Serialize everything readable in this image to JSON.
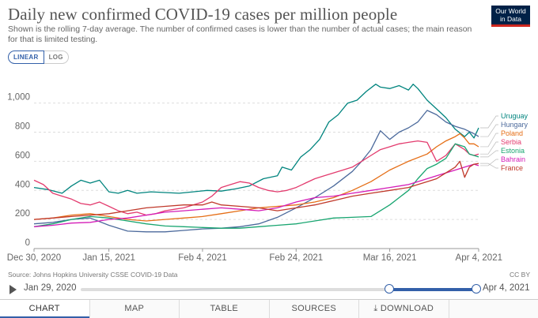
{
  "header": {
    "title": "Daily new confirmed COVID-19 cases per million people",
    "subtitle": "Shown is the rolling 7-day average. The number of confirmed cases is lower than the number of actual cases; the main reason for that is limited testing.",
    "logo_line1": "Our World",
    "logo_line2": "in Data"
  },
  "controls": {
    "linear": "LINEAR",
    "log": "LOG"
  },
  "footer": {
    "source": "Source: Johns Hopkins University CSSE COVID-19 Data",
    "license": "CC BY"
  },
  "timeline": {
    "start": "Jan 29, 2020",
    "end": "Apr 4, 2021",
    "selected_start_fraction": 0.78,
    "selected_end_fraction": 1.0
  },
  "tabs": [
    "CHART",
    "MAP",
    "TABLE",
    "SOURCES",
    "DOWNLOAD",
    ""
  ],
  "colors": {
    "accent": "#3360a9"
  },
  "chart_data": {
    "type": "line",
    "title": "Daily new confirmed COVID-19 cases per million people",
    "xlabel": "",
    "ylabel": "",
    "ylim": [
      0,
      1150
    ],
    "x_days": [
      0,
      95
    ],
    "x_ticks": [
      {
        "day": 0,
        "label": "Dec 30, 2020"
      },
      {
        "day": 16,
        "label": "Jan 15, 2021"
      },
      {
        "day": 36,
        "label": "Feb 4, 2021"
      },
      {
        "day": 56,
        "label": "Feb 24, 2021"
      },
      {
        "day": 76,
        "label": "Mar 16, 2021"
      },
      {
        "day": 95,
        "label": "Apr 4, 2021"
      }
    ],
    "y_ticks": [
      {
        "value": 0,
        "label": "0"
      },
      {
        "value": 200,
        "label": "200"
      },
      {
        "value": 400,
        "label": "400"
      },
      {
        "value": 600,
        "label": "600"
      },
      {
        "value": 800,
        "label": "800"
      },
      {
        "value": 1000,
        "label": "1,000"
      }
    ],
    "series": [
      {
        "name": "Uruguay",
        "color": "#00847e",
        "points": [
          [
            0,
            420
          ],
          [
            3,
            405
          ],
          [
            6,
            380
          ],
          [
            8,
            430
          ],
          [
            10,
            470
          ],
          [
            12,
            450
          ],
          [
            14,
            470
          ],
          [
            16,
            390
          ],
          [
            18,
            380
          ],
          [
            20,
            400
          ],
          [
            22,
            380
          ],
          [
            25,
            390
          ],
          [
            28,
            385
          ],
          [
            31,
            380
          ],
          [
            34,
            390
          ],
          [
            37,
            400
          ],
          [
            40,
            395
          ],
          [
            43,
            410
          ],
          [
            46,
            430
          ],
          [
            49,
            480
          ],
          [
            52,
            500
          ],
          [
            53,
            560
          ],
          [
            55,
            540
          ],
          [
            57,
            630
          ],
          [
            59,
            680
          ],
          [
            61,
            750
          ],
          [
            63,
            870
          ],
          [
            65,
            920
          ],
          [
            67,
            1000
          ],
          [
            69,
            1020
          ],
          [
            71,
            1080
          ],
          [
            73,
            1130
          ],
          [
            74,
            1110
          ],
          [
            76,
            1100
          ],
          [
            78,
            1120
          ],
          [
            80,
            1090
          ],
          [
            81,
            1130
          ],
          [
            82,
            1100
          ],
          [
            84,
            1020
          ],
          [
            86,
            960
          ],
          [
            88,
            900
          ],
          [
            90,
            820
          ],
          [
            92,
            770
          ],
          [
            93,
            800
          ],
          [
            94,
            760
          ],
          [
            95,
            830
          ]
        ]
      },
      {
        "name": "Hungary",
        "color": "#4c6a9c",
        "points": [
          [
            0,
            170
          ],
          [
            4,
            180
          ],
          [
            8,
            200
          ],
          [
            12,
            210
          ],
          [
            16,
            160
          ],
          [
            20,
            120
          ],
          [
            24,
            115
          ],
          [
            28,
            115
          ],
          [
            32,
            125
          ],
          [
            36,
            135
          ],
          [
            40,
            140
          ],
          [
            44,
            150
          ],
          [
            48,
            170
          ],
          [
            52,
            215
          ],
          [
            56,
            280
          ],
          [
            60,
            350
          ],
          [
            64,
            430
          ],
          [
            68,
            530
          ],
          [
            70,
            600
          ],
          [
            72,
            680
          ],
          [
            74,
            810
          ],
          [
            76,
            750
          ],
          [
            78,
            800
          ],
          [
            80,
            830
          ],
          [
            82,
            870
          ],
          [
            84,
            950
          ],
          [
            86,
            920
          ],
          [
            88,
            870
          ],
          [
            90,
            840
          ],
          [
            92,
            820
          ],
          [
            94,
            790
          ],
          [
            95,
            770
          ]
        ]
      },
      {
        "name": "Poland",
        "color": "#e56e16",
        "points": [
          [
            0,
            200
          ],
          [
            4,
            210
          ],
          [
            8,
            230
          ],
          [
            12,
            240
          ],
          [
            16,
            220
          ],
          [
            20,
            200
          ],
          [
            24,
            190
          ],
          [
            28,
            200
          ],
          [
            32,
            210
          ],
          [
            36,
            220
          ],
          [
            40,
            240
          ],
          [
            44,
            260
          ],
          [
            48,
            280
          ],
          [
            52,
            290
          ],
          [
            56,
            300
          ],
          [
            60,
            320
          ],
          [
            64,
            350
          ],
          [
            68,
            400
          ],
          [
            72,
            460
          ],
          [
            76,
            540
          ],
          [
            80,
            600
          ],
          [
            84,
            650
          ],
          [
            86,
            700
          ],
          [
            88,
            740
          ],
          [
            90,
            770
          ],
          [
            91,
            790
          ],
          [
            92,
            760
          ],
          [
            93,
            720
          ],
          [
            94,
            720
          ],
          [
            95,
            700
          ]
        ]
      },
      {
        "name": "Serbia",
        "color": "#e33b6e",
        "points": [
          [
            0,
            470
          ],
          [
            2,
            440
          ],
          [
            4,
            380
          ],
          [
            6,
            360
          ],
          [
            8,
            340
          ],
          [
            10,
            310
          ],
          [
            12,
            300
          ],
          [
            14,
            320
          ],
          [
            16,
            290
          ],
          [
            18,
            260
          ],
          [
            20,
            240
          ],
          [
            22,
            250
          ],
          [
            24,
            230
          ],
          [
            26,
            240
          ],
          [
            28,
            260
          ],
          [
            30,
            270
          ],
          [
            32,
            280
          ],
          [
            34,
            300
          ],
          [
            36,
            320
          ],
          [
            38,
            360
          ],
          [
            40,
            420
          ],
          [
            42,
            440
          ],
          [
            44,
            460
          ],
          [
            46,
            450
          ],
          [
            48,
            420
          ],
          [
            50,
            400
          ],
          [
            52,
            390
          ],
          [
            54,
            400
          ],
          [
            56,
            420
          ],
          [
            58,
            450
          ],
          [
            60,
            480
          ],
          [
            62,
            500
          ],
          [
            64,
            520
          ],
          [
            66,
            540
          ],
          [
            68,
            560
          ],
          [
            70,
            600
          ],
          [
            72,
            640
          ],
          [
            74,
            680
          ],
          [
            76,
            700
          ],
          [
            78,
            720
          ],
          [
            80,
            730
          ],
          [
            82,
            740
          ],
          [
            84,
            730
          ],
          [
            86,
            600
          ],
          [
            88,
            640
          ],
          [
            90,
            720
          ],
          [
            92,
            680
          ],
          [
            93,
            650
          ],
          [
            94,
            640
          ],
          [
            95,
            650
          ]
        ]
      },
      {
        "name": "Estonia",
        "color": "#18a570",
        "points": [
          [
            0,
            150
          ],
          [
            4,
            170
          ],
          [
            8,
            200
          ],
          [
            12,
            220
          ],
          [
            16,
            210
          ],
          [
            20,
            190
          ],
          [
            24,
            170
          ],
          [
            28,
            155
          ],
          [
            32,
            150
          ],
          [
            36,
            145
          ],
          [
            40,
            140
          ],
          [
            44,
            140
          ],
          [
            48,
            150
          ],
          [
            52,
            160
          ],
          [
            56,
            170
          ],
          [
            60,
            190
          ],
          [
            64,
            210
          ],
          [
            68,
            215
          ],
          [
            72,
            220
          ],
          [
            76,
            300
          ],
          [
            80,
            400
          ],
          [
            82,
            480
          ],
          [
            84,
            550
          ],
          [
            86,
            580
          ],
          [
            88,
            620
          ],
          [
            90,
            720
          ],
          [
            92,
            700
          ],
          [
            93,
            650
          ],
          [
            94,
            640
          ],
          [
            95,
            630
          ]
        ]
      },
      {
        "name": "Bahrain",
        "color": "#d41cb7",
        "points": [
          [
            0,
            150
          ],
          [
            4,
            160
          ],
          [
            8,
            175
          ],
          [
            12,
            180
          ],
          [
            16,
            200
          ],
          [
            20,
            210
          ],
          [
            24,
            230
          ],
          [
            28,
            250
          ],
          [
            32,
            260
          ],
          [
            36,
            270
          ],
          [
            40,
            280
          ],
          [
            44,
            270
          ],
          [
            48,
            260
          ],
          [
            52,
            280
          ],
          [
            56,
            320
          ],
          [
            60,
            350
          ],
          [
            64,
            360
          ],
          [
            68,
            380
          ],
          [
            72,
            400
          ],
          [
            76,
            420
          ],
          [
            80,
            440
          ],
          [
            82,
            460
          ],
          [
            84,
            480
          ],
          [
            86,
            500
          ],
          [
            88,
            520
          ],
          [
            90,
            540
          ],
          [
            92,
            560
          ],
          [
            94,
            580
          ],
          [
            95,
            570
          ]
        ]
      },
      {
        "name": "France",
        "color": "#c0392b",
        "points": [
          [
            0,
            200
          ],
          [
            4,
            210
          ],
          [
            8,
            220
          ],
          [
            12,
            230
          ],
          [
            16,
            240
          ],
          [
            20,
            260
          ],
          [
            24,
            280
          ],
          [
            28,
            290
          ],
          [
            32,
            300
          ],
          [
            36,
            300
          ],
          [
            38,
            320
          ],
          [
            40,
            300
          ],
          [
            44,
            290
          ],
          [
            48,
            280
          ],
          [
            52,
            260
          ],
          [
            56,
            280
          ],
          [
            60,
            300
          ],
          [
            64,
            330
          ],
          [
            68,
            360
          ],
          [
            72,
            380
          ],
          [
            76,
            400
          ],
          [
            80,
            420
          ],
          [
            82,
            440
          ],
          [
            84,
            460
          ],
          [
            86,
            480
          ],
          [
            88,
            520
          ],
          [
            90,
            560
          ],
          [
            91,
            600
          ],
          [
            92,
            490
          ],
          [
            93,
            560
          ],
          [
            94,
            580
          ],
          [
            95,
            585
          ]
        ]
      }
    ]
  }
}
